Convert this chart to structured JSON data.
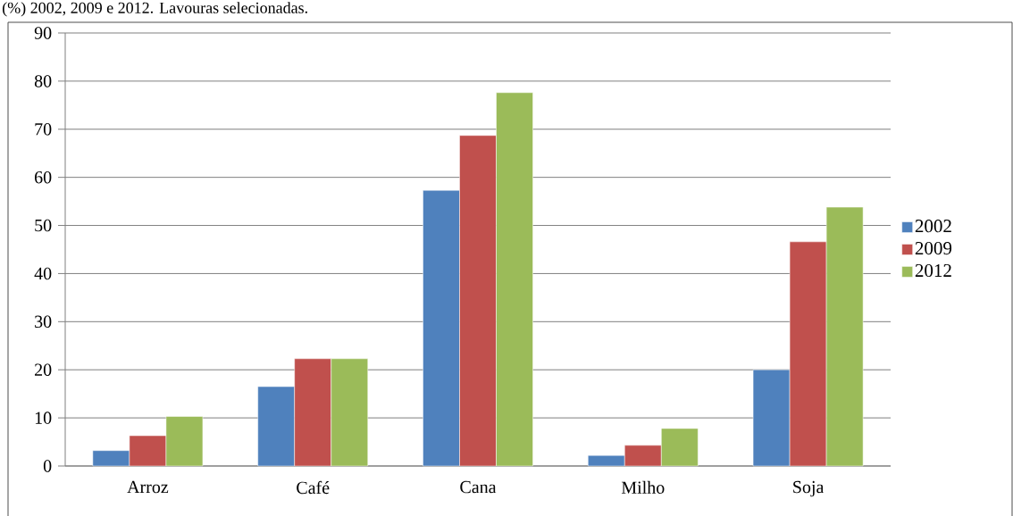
{
  "chart_data": {
    "type": "bar",
    "title": "(%) 2002, 2009 e 2012. Lavouras selecionadas.",
    "categories": [
      "Arroz",
      "Café",
      "Cana",
      "Milho",
      "Soja"
    ],
    "series": [
      {
        "name": "2002",
        "color": "#4f81bd",
        "values": [
          3.2,
          16.5,
          57.3,
          2.2,
          20.0
        ]
      },
      {
        "name": "2009",
        "color": "#c0504d",
        "values": [
          6.3,
          22.3,
          68.7,
          4.3,
          46.6
        ]
      },
      {
        "name": "2012",
        "color": "#9bbb59",
        "values": [
          10.3,
          22.3,
          77.6,
          7.8,
          53.8
        ]
      }
    ],
    "ylim": [
      0,
      90
    ],
    "yticks": [
      0,
      10,
      20,
      30,
      40,
      50,
      60,
      70,
      80,
      90
    ],
    "grid": "y",
    "legend": "right"
  }
}
